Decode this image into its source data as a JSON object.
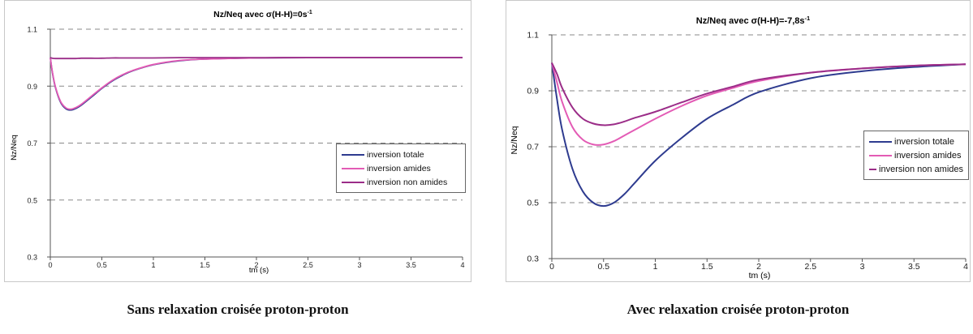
{
  "captions": {
    "left": "Sans relaxation croisée proton-proton",
    "right": "Avec relaxation croisée proton-proton"
  },
  "colors": {
    "inversion_totale": "#2e3b8f",
    "inversion_amides": "#e35bb5",
    "inversion_non_amides": "#9b2d88"
  },
  "chart_data": [
    {
      "type": "line",
      "title_prefix": "Nz/Neq avec σ(H-H)=0s",
      "title_sup": "-1",
      "xlabel": "tm (s)",
      "ylabel": "Nz/Neq",
      "xlim": [
        0,
        4
      ],
      "ylim": [
        0.3,
        1.1
      ],
      "xticks": [
        "0",
        "0.5",
        "1",
        "1.5",
        "2",
        "2.5",
        "3",
        "3.5",
        "4"
      ],
      "yticks": [
        "0.3",
        "0.5",
        "0.7",
        "0.9",
        "1.1"
      ],
      "grid": "horizontal dashed",
      "legend_position": "right",
      "x": [
        0,
        0.02,
        0.05,
        0.1,
        0.15,
        0.2,
        0.25,
        0.3,
        0.4,
        0.5,
        0.6,
        0.7,
        0.8,
        1.0,
        1.25,
        1.5,
        2.0,
        2.5,
        3.0,
        3.5,
        4.0
      ],
      "series": [
        {
          "name": "inversion totale",
          "values": [
            1.0,
            0.948,
            0.895,
            0.843,
            0.821,
            0.816,
            0.822,
            0.833,
            0.862,
            0.892,
            0.918,
            0.938,
            0.954,
            0.975,
            0.989,
            0.995,
            0.999,
            1.0,
            1.0,
            1.0,
            1.0
          ]
        },
        {
          "name": "inversion amides",
          "values": [
            1.0,
            0.95,
            0.897,
            0.846,
            0.824,
            0.819,
            0.825,
            0.836,
            0.865,
            0.894,
            0.92,
            0.94,
            0.955,
            0.976,
            0.99,
            0.995,
            0.999,
            1.0,
            1.0,
            1.0,
            1.0
          ]
        },
        {
          "name": "inversion non amides",
          "values": [
            1.0,
            0.998,
            0.997,
            0.997,
            0.997,
            0.997,
            0.997,
            0.998,
            0.998,
            0.998,
            0.999,
            0.999,
            0.999,
            0.999,
            1.0,
            1.0,
            1.0,
            1.0,
            1.0,
            1.0,
            1.0
          ]
        }
      ]
    },
    {
      "type": "line",
      "title_prefix": "Nz/Neq avec σ(H-H)=-7,8s",
      "title_sup": "-1",
      "xlabel": "tm (s)",
      "ylabel": "Nz/Neq",
      "xlim": [
        0,
        4
      ],
      "ylim": [
        0.3,
        1.1
      ],
      "xticks": [
        "0",
        "0.5",
        "1",
        "1.5",
        "2",
        "2.5",
        "3",
        "3.5",
        "4"
      ],
      "yticks": [
        "0.3",
        "0.5",
        "0.7",
        "0.9",
        "1.1"
      ],
      "grid": "horizontal dashed",
      "legend_position": "right",
      "x": [
        0,
        0.05,
        0.1,
        0.2,
        0.3,
        0.4,
        0.5,
        0.6,
        0.7,
        0.8,
        1.0,
        1.25,
        1.5,
        1.75,
        2.0,
        2.5,
        3.0,
        3.5,
        4.0
      ],
      "series": [
        {
          "name": "inversion totale",
          "values": [
            1.0,
            0.87,
            0.76,
            0.62,
            0.54,
            0.5,
            0.488,
            0.5,
            0.53,
            0.57,
            0.65,
            0.73,
            0.8,
            0.85,
            0.895,
            0.945,
            0.97,
            0.985,
            0.995
          ]
        },
        {
          "name": "inversion amides",
          "values": [
            1.0,
            0.93,
            0.86,
            0.77,
            0.725,
            0.708,
            0.708,
            0.72,
            0.74,
            0.76,
            0.8,
            0.845,
            0.883,
            0.91,
            0.935,
            0.965,
            0.98,
            0.99,
            0.995
          ]
        },
        {
          "name": "inversion non amides",
          "values": [
            1.0,
            0.96,
            0.91,
            0.84,
            0.8,
            0.783,
            0.777,
            0.78,
            0.79,
            0.803,
            0.825,
            0.858,
            0.89,
            0.915,
            0.94,
            0.965,
            0.98,
            0.99,
            0.995
          ]
        }
      ]
    }
  ]
}
